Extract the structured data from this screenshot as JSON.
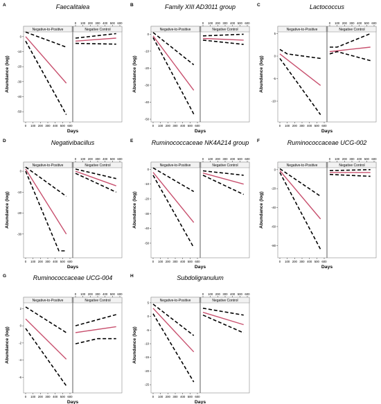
{
  "figure": {
    "strip_labels": [
      "Negative-to-Positive",
      "Negative Control"
    ],
    "xlabel": "Days",
    "ylabel": "Abundance (log)",
    "x_ticks": [
      0,
      100,
      200,
      300,
      400,
      500,
      600
    ],
    "xlim": [
      0,
      600
    ],
    "colors": {
      "fit": "#c8506e",
      "ci": "#000000",
      "frame": "#888888",
      "strip_bg": "#f2f2f2",
      "divider": "#333333"
    }
  },
  "chart_data": [
    {
      "type": "line",
      "letter": "A",
      "title": "Faecalitalea",
      "ylim": [
        -55,
        5
      ],
      "y_ticks": [
        0,
        -10,
        -20,
        -30,
        -40,
        -50
      ],
      "panels": [
        {
          "strip": "Negative-to-Positive",
          "series": [
            {
              "role": "fit",
              "x": [
                0,
                550
              ],
              "y": [
                0,
                -31
              ]
            },
            {
              "role": "upper",
              "x": [
                0,
                550
              ],
              "y": [
                3,
                -7
              ]
            },
            {
              "role": "lower",
              "x": [
                0,
                550
              ],
              "y": [
                -3,
                -52
              ]
            }
          ]
        },
        {
          "strip": "Negative Control",
          "series": [
            {
              "role": "fit",
              "x": [
                0,
                550
              ],
              "y": [
                -3,
                -1
              ]
            },
            {
              "role": "upper",
              "x": [
                0,
                550
              ],
              "y": [
                -1,
                2
              ]
            },
            {
              "role": "lower",
              "x": [
                0,
                550
              ],
              "y": [
                -4.5,
                -5
              ]
            }
          ]
        }
      ]
    },
    {
      "type": "line",
      "letter": "B",
      "title": "Family XIII AD3011 group",
      "ylim": [
        -50,
        3
      ],
      "y_ticks": [
        0,
        -10,
        -20,
        -30,
        -40,
        -50
      ],
      "panels": [
        {
          "strip": "Negative-to-Positive",
          "series": [
            {
              "role": "fit",
              "x": [
                0,
                550
              ],
              "y": [
                -1,
                -33
              ]
            },
            {
              "role": "upper",
              "x": [
                0,
                550
              ],
              "y": [
                1,
                -18
              ]
            },
            {
              "role": "lower",
              "x": [
                0,
                550
              ],
              "y": [
                -2,
                -47
              ]
            }
          ]
        },
        {
          "strip": "Negative Control",
          "series": [
            {
              "role": "fit",
              "x": [
                0,
                550
              ],
              "y": [
                -2.5,
                -3.5
              ]
            },
            {
              "role": "upper",
              "x": [
                0,
                550
              ],
              "y": [
                -1,
                0
              ]
            },
            {
              "role": "lower",
              "x": [
                0,
                550
              ],
              "y": [
                -3.5,
                -6
              ]
            }
          ]
        }
      ]
    },
    {
      "type": "line",
      "letter": "C",
      "title": "Lactococcus",
      "ylim": [
        -14,
        6
      ],
      "y_ticks": [
        5,
        0,
        -5,
        -10
      ],
      "panels": [
        {
          "strip": "Negative-to-Positive",
          "series": [
            {
              "role": "fit",
              "x": [
                0,
                550
              ],
              "y": [
                0.5,
                -6.5
              ]
            },
            {
              "role": "upper",
              "x": [
                0,
                100,
                550
              ],
              "y": [
                1.5,
                0.5,
                -0.5
              ]
            },
            {
              "role": "lower",
              "x": [
                0,
                550
              ],
              "y": [
                -0.5,
                -13
              ]
            }
          ]
        },
        {
          "strip": "Negative Control",
          "series": [
            {
              "role": "fit",
              "x": [
                0,
                550
              ],
              "y": [
                1,
                2
              ]
            },
            {
              "role": "upper",
              "x": [
                0,
                100,
                550
              ],
              "y": [
                2,
                2,
                5
              ]
            },
            {
              "role": "lower",
              "x": [
                0,
                100,
                550
              ],
              "y": [
                0.5,
                1,
                -1
              ]
            }
          ]
        }
      ]
    },
    {
      "type": "line",
      "letter": "D",
      "title": "Negativibacillus",
      "ylim": [
        -40,
        3
      ],
      "y_ticks": [
        0,
        -10,
        -20,
        -30
      ],
      "panels": [
        {
          "strip": "Negative-to-Positive",
          "series": [
            {
              "role": "fit",
              "x": [
                0,
                550
              ],
              "y": [
                1,
                -30
              ]
            },
            {
              "role": "upper",
              "x": [
                0,
                550
              ],
              "y": [
                2,
                -12
              ]
            },
            {
              "role": "lower",
              "x": [
                0,
                450,
                550
              ],
              "y": [
                0,
                -38,
                -38
              ]
            }
          ]
        },
        {
          "strip": "Negative Control",
          "series": [
            {
              "role": "fit",
              "x": [
                0,
                550
              ],
              "y": [
                0,
                -7
              ]
            },
            {
              "role": "upper",
              "x": [
                0,
                550
              ],
              "y": [
                1,
                -3.5
              ]
            },
            {
              "role": "lower",
              "x": [
                0,
                550
              ],
              "y": [
                -1,
                -10
              ]
            }
          ]
        }
      ]
    },
    {
      "type": "line",
      "letter": "E",
      "title": "Ruminococcaceae NK4A214 group",
      "ylim": [
        -58,
        3
      ],
      "y_ticks": [
        0,
        -10,
        -20,
        -30,
        -40,
        -50
      ],
      "panels": [
        {
          "strip": "Negative-to-Positive",
          "series": [
            {
              "role": "fit",
              "x": [
                0,
                550
              ],
              "y": [
                -2,
                -36
              ]
            },
            {
              "role": "upper",
              "x": [
                0,
                550
              ],
              "y": [
                1,
                -15
              ]
            },
            {
              "role": "lower",
              "x": [
                0,
                550
              ],
              "y": [
                -4,
                -53
              ]
            }
          ]
        },
        {
          "strip": "Negative Control",
          "series": [
            {
              "role": "fit",
              "x": [
                0,
                550
              ],
              "y": [
                -2.5,
                -10
              ]
            },
            {
              "role": "upper",
              "x": [
                0,
                550
              ],
              "y": [
                -1,
                -4
              ]
            },
            {
              "role": "lower",
              "x": [
                0,
                550
              ],
              "y": [
                -4,
                -17
              ]
            }
          ]
        }
      ]
    },
    {
      "type": "line",
      "letter": "F",
      "title": "Ruminococcaceae UCG-002",
      "ylim": [
        -90,
        5
      ],
      "y_ticks": [
        0,
        -20,
        -40,
        -60,
        -80
      ],
      "panels": [
        {
          "strip": "Negative-to-Positive",
          "series": [
            {
              "role": "fit",
              "x": [
                0,
                550
              ],
              "y": [
                -1,
                -52
              ]
            },
            {
              "role": "upper",
              "x": [
                0,
                550
              ],
              "y": [
                1,
                -28
              ]
            },
            {
              "role": "lower",
              "x": [
                0,
                550
              ],
              "y": [
                -3,
                -84
              ]
            }
          ]
        },
        {
          "strip": "Negative Control",
          "series": [
            {
              "role": "fit",
              "x": [
                0,
                550
              ],
              "y": [
                -3,
                -3
              ]
            },
            {
              "role": "upper",
              "x": [
                0,
                550
              ],
              "y": [
                -1,
                0
              ]
            },
            {
              "role": "lower",
              "x": [
                0,
                550
              ],
              "y": [
                -5,
                -7
              ]
            }
          ]
        }
      ]
    },
    {
      "type": "line",
      "letter": "G",
      "title": "Ruminococcaceae UCG-004",
      "ylim": [
        -7.5,
        3
      ],
      "y_ticks": [
        2,
        0,
        -2,
        -4,
        -6
      ],
      "panels": [
        {
          "strip": "Negative-to-Positive",
          "series": [
            {
              "role": "fit",
              "x": [
                0,
                550
              ],
              "y": [
                0.8,
                -3.9
              ]
            },
            {
              "role": "upper",
              "x": [
                0,
                550
              ],
              "y": [
                2.2,
                -0.8
              ]
            },
            {
              "role": "lower",
              "x": [
                0,
                550
              ],
              "y": [
                -0.3,
                -7
              ]
            }
          ]
        },
        {
          "strip": "Negative Control",
          "series": [
            {
              "role": "fit",
              "x": [
                0,
                550
              ],
              "y": [
                -0.8,
                -0.1
              ]
            },
            {
              "role": "upper",
              "x": [
                0,
                550
              ],
              "y": [
                0,
                1.3
              ]
            },
            {
              "role": "lower",
              "x": [
                0,
                300,
                550
              ],
              "y": [
                -2.1,
                -1.5,
                -1.5
              ]
            }
          ]
        }
      ]
    },
    {
      "type": "line",
      "letter": "H",
      "title": "Subdoligranulum",
      "ylim": [
        -27,
        6
      ],
      "y_ticks": [
        5,
        0,
        -5,
        -10,
        -15,
        -20,
        -25
      ],
      "panels": [
        {
          "strip": "Negative-to-Positive",
          "series": [
            {
              "role": "fit",
              "x": [
                0,
                550
              ],
              "y": [
                3,
                -13
              ]
            },
            {
              "role": "upper",
              "x": [
                0,
                550
              ],
              "y": [
                4.5,
                -7
              ]
            },
            {
              "role": "lower",
              "x": [
                0,
                550
              ],
              "y": [
                1,
                -24
              ]
            }
          ]
        },
        {
          "strip": "Negative Control",
          "series": [
            {
              "role": "fit",
              "x": [
                0,
                550
              ],
              "y": [
                1.5,
                -3
              ]
            },
            {
              "role": "upper",
              "x": [
                0,
                550
              ],
              "y": [
                3,
                0.5
              ]
            },
            {
              "role": "lower",
              "x": [
                0,
                550
              ],
              "y": [
                0.5,
                -6
              ]
            }
          ]
        }
      ]
    }
  ]
}
